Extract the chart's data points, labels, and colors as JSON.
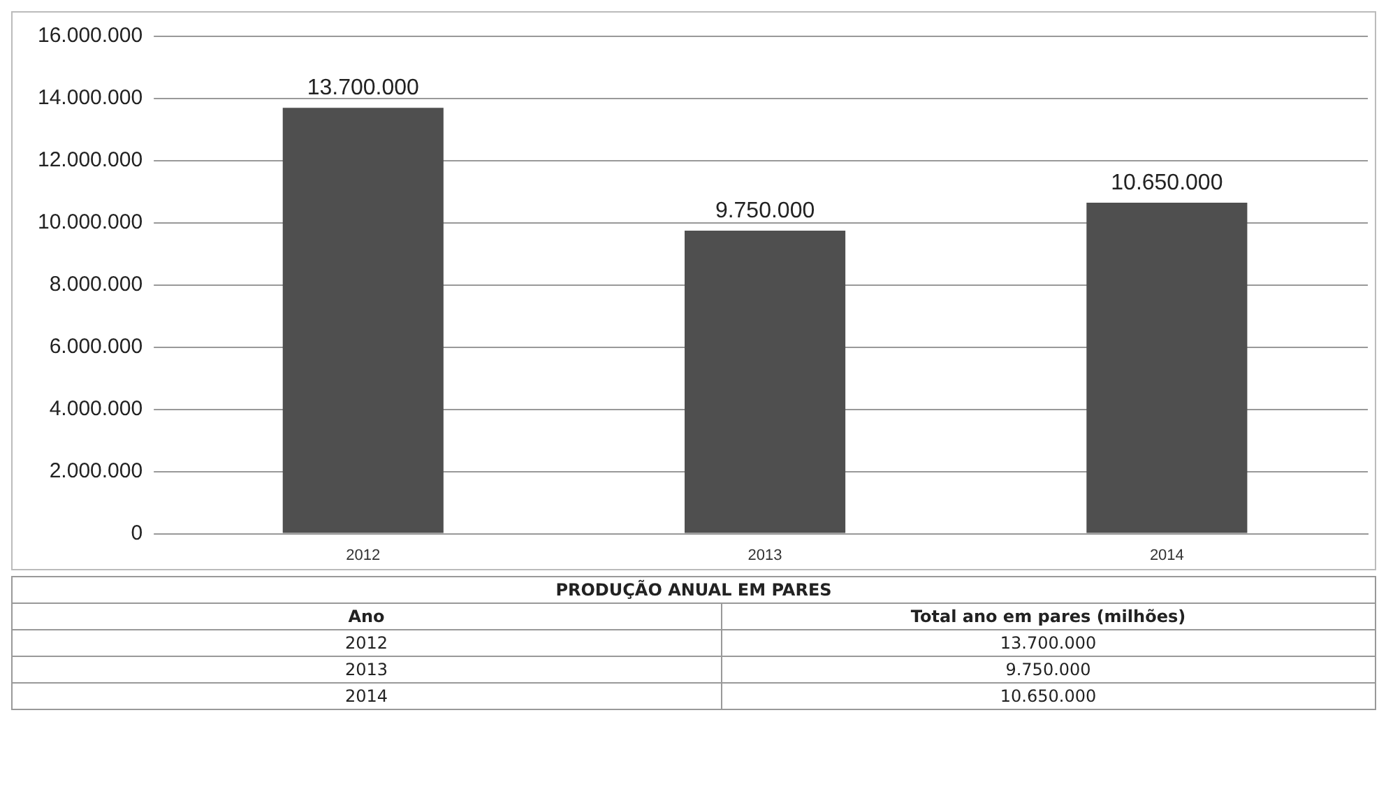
{
  "chart_data": {
    "type": "bar",
    "title": "PRODUÇÃO ANUAL EM PARES",
    "annotations": [
      "Ano",
      "Total ano em pares (milhões)"
    ],
    "categories": [
      "2012",
      "2013",
      "2014"
    ],
    "values": [
      13700000,
      9750000,
      10650000
    ],
    "value_labels": [
      "13.700.000",
      "9.750.000",
      "10.650.000"
    ],
    "color": "#4f4f4f",
    "ylim": [
      0,
      16000000
    ],
    "yticks": [
      {
        "value": 0,
        "label": "0"
      },
      {
        "value": 2000000,
        "label": "2.000.000"
      },
      {
        "value": 4000000,
        "label": "4.000.000"
      },
      {
        "value": 6000000,
        "label": "6.000.000"
      },
      {
        "value": 8000000,
        "label": "8.000.000"
      },
      {
        "value": 10000000,
        "label": "10.000.000"
      },
      {
        "value": 12000000,
        "label": "12.000.000"
      },
      {
        "value": 14000000,
        "label": "14.000.000"
      },
      {
        "value": 16000000,
        "label": "16.000.000"
      }
    ],
    "grid": "y",
    "legend": false
  }
}
